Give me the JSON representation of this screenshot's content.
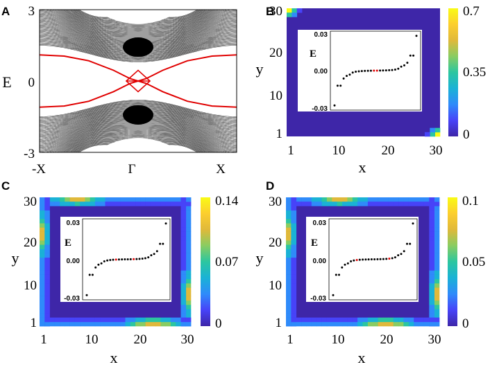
{
  "chart_data": [
    {
      "panel": "A",
      "type": "line",
      "ylabel": "E",
      "xticks": [
        "-X",
        "Γ",
        "X"
      ],
      "yticks": [
        "-3",
        "0",
        "3"
      ],
      "ylim": [
        -3,
        3
      ],
      "colors": {
        "bulk": "#000000",
        "edge": "#e00000"
      },
      "series": [
        {
          "x": [
            -1,
            -0.75,
            -0.5,
            -0.25,
            -0.08,
            0
          ],
          "values": [
            1.1,
            1.05,
            0.85,
            0.45,
            0.1,
            0
          ]
        },
        {
          "x": [
            -1,
            -0.75,
            -0.5,
            -0.25,
            -0.08,
            0
          ],
          "values": [
            -1.1,
            -1.05,
            -0.85,
            -0.45,
            -0.1,
            0
          ]
        },
        {
          "x": [
            0,
            0.08,
            0.25,
            0.5,
            0.75,
            1
          ],
          "values": [
            0,
            0.1,
            0.45,
            0.85,
            1.05,
            1.1
          ]
        },
        {
          "x": [
            0,
            0.08,
            0.25,
            0.5,
            0.75,
            1
          ],
          "values": [
            0,
            -0.1,
            -0.45,
            -0.85,
            -1.05,
            -1.1
          ]
        }
      ]
    },
    {
      "panel": "B",
      "type": "heatmap",
      "xlabel": "x",
      "ylabel": "y",
      "xticks": [
        "1",
        "10",
        "20",
        "30"
      ],
      "yticks": [
        "1",
        "10",
        "20",
        "30"
      ],
      "colorbar_ticks": [
        "0",
        "0.35",
        "0.7"
      ],
      "colorbar_range": [
        0,
        0.7
      ],
      "hotspots": [
        {
          "x": 1,
          "y": 30,
          "value": 0.7
        },
        {
          "x": 2,
          "y": 30,
          "value": 0.35
        },
        {
          "x": 1,
          "y": 29,
          "value": 0.35
        },
        {
          "x": 30,
          "y": 1,
          "value": 0.7
        },
        {
          "x": 29,
          "y": 1,
          "value": 0.35
        },
        {
          "x": 30,
          "y": 2,
          "value": 0.35
        }
      ],
      "inset": {
        "ylabel": "E",
        "yticks": [
          "0.03",
          "0.00",
          "-0.03"
        ],
        "ylim": [
          -0.03,
          0.03
        ],
        "energies": [
          -0.0265,
          -0.0115,
          -0.0115,
          -0.006,
          -0.004,
          -0.003,
          -0.0015,
          -0.0008,
          -0.0005,
          -0.0003,
          -0.0002,
          -0.0001,
          -5e-05,
          0,
          0,
          5e-05,
          0.0001,
          0.0002,
          0.0003,
          0.0005,
          0.0008,
          0.0015,
          0.003,
          0.004,
          0.006,
          0.0115,
          0.0115,
          0.0265
        ],
        "zero_modes": [
          13,
          14
        ]
      }
    },
    {
      "panel": "C",
      "type": "heatmap",
      "xlabel": "x",
      "ylabel": "y",
      "xticks": [
        "1",
        "10",
        "20",
        "30"
      ],
      "yticks": [
        "1",
        "10",
        "20",
        "30"
      ],
      "colorbar_ticks": [
        "0",
        "0.07",
        "0.14"
      ],
      "colorbar_range": [
        0,
        0.14
      ],
      "inset": {
        "ylabel": "E",
        "yticks": [
          "0.03",
          "0.00",
          "-0.03"
        ],
        "ylim": [
          -0.03,
          0.03
        ],
        "energies": [
          -0.0265,
          -0.0115,
          -0.0115,
          -0.006,
          -0.004,
          -0.003,
          -0.0015,
          -0.0008,
          -0.0005,
          -0.0003,
          -0.0002,
          -0.0001,
          -5e-05,
          0,
          0,
          5e-05,
          0.0001,
          0.0002,
          0.0003,
          0.0005,
          0.0008,
          0.0015,
          0.003,
          0.004,
          0.006,
          0.0115,
          0.0115,
          0.0265
        ],
        "zero_modes": [
          10,
          16
        ]
      }
    },
    {
      "panel": "D",
      "type": "heatmap",
      "xlabel": "x",
      "ylabel": "y",
      "xticks": [
        "1",
        "10",
        "20",
        "30"
      ],
      "yticks": [
        "1",
        "10",
        "20",
        "30"
      ],
      "colorbar_ticks": [
        "0",
        "0.05",
        "0.1"
      ],
      "colorbar_range": [
        0,
        0.1
      ],
      "inset": {
        "ylabel": "E",
        "yticks": [
          "0.03",
          "0.00",
          "-0.03"
        ],
        "ylim": [
          -0.03,
          0.03
        ],
        "energies": [
          -0.0265,
          -0.0115,
          -0.0115,
          -0.006,
          -0.004,
          -0.003,
          -0.0015,
          -0.0008,
          -0.0005,
          -0.0003,
          -0.0002,
          -0.0001,
          -5e-05,
          0,
          0,
          5e-05,
          0.0001,
          0.0002,
          0.0003,
          0.0005,
          0.0008,
          0.0015,
          0.003,
          0.004,
          0.006,
          0.0115,
          0.0115,
          0.0265
        ],
        "zero_modes": [
          8,
          19
        ]
      }
    }
  ],
  "panel_labels": [
    "A",
    "B",
    "C",
    "D"
  ],
  "colormap": [
    "#3e26a8",
    "#4743f8",
    "#2f8bfa",
    "#1ab2d6",
    "#2cc6a0",
    "#89cc62",
    "#e0b93a",
    "#fcce2e",
    "#f9fb15"
  ]
}
